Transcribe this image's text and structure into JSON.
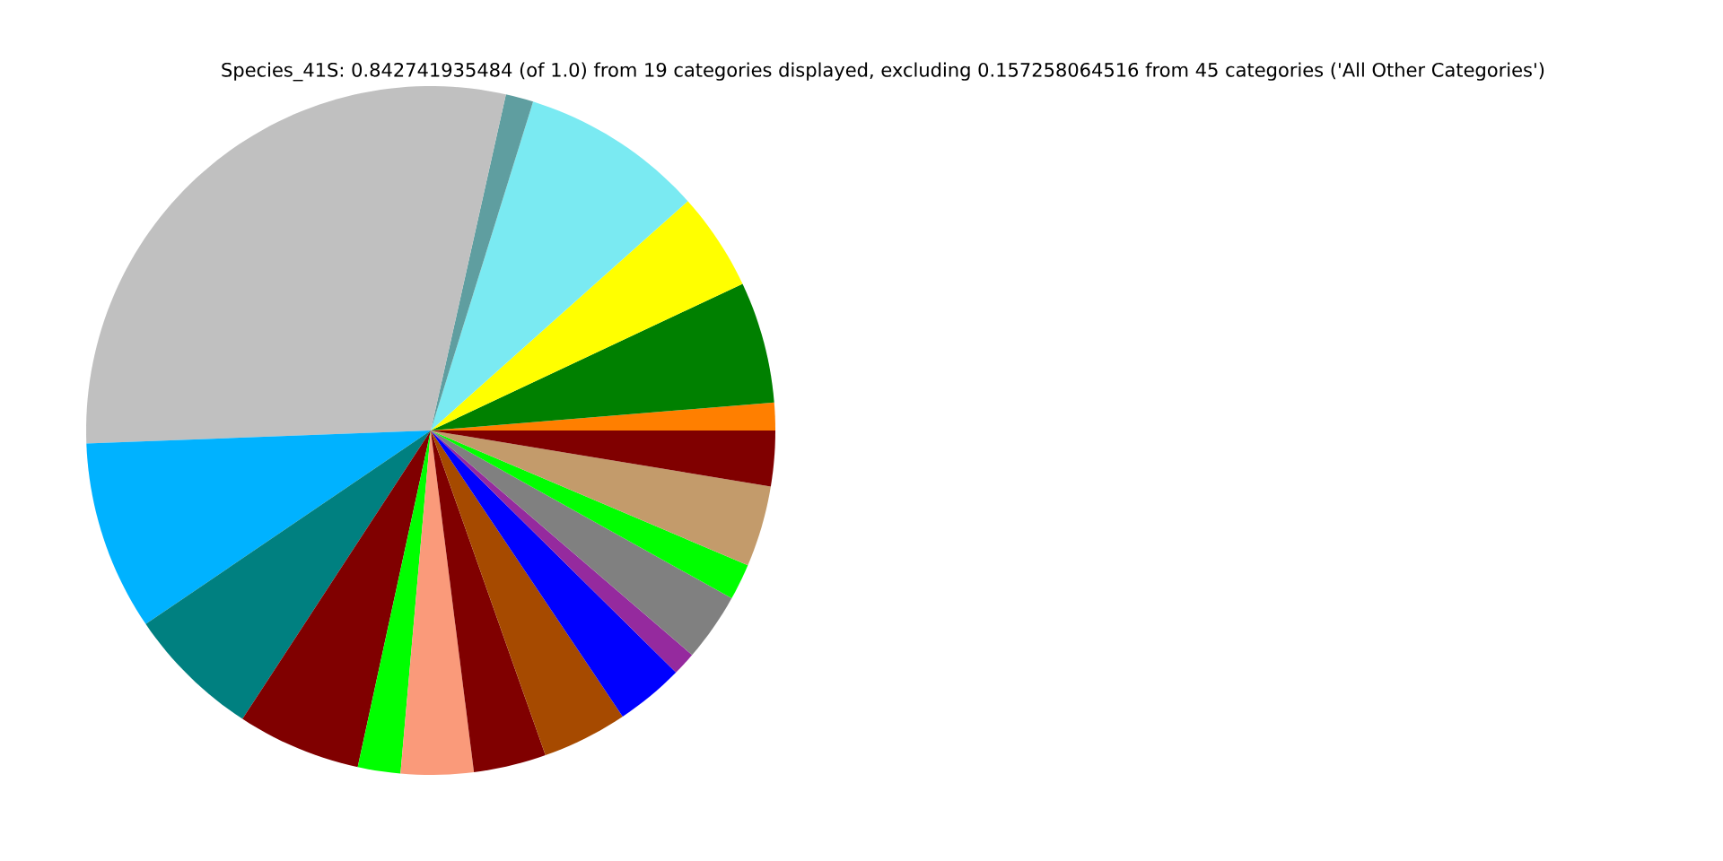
{
  "chart_data": {
    "type": "pie",
    "title": "Species_41S: 0.842741935484 (of 1.0) from 19 categories displayed, excluding 0.157258064516 from 45 categories ('All Other Categories')",
    "categories": [
      null,
      null,
      null,
      null,
      null,
      null,
      null,
      null,
      null,
      null,
      null,
      null,
      null,
      null,
      null,
      null,
      null,
      null,
      null
    ],
    "values": [
      1.3,
      5.7,
      4.6,
      8.6,
      1.3,
      29.1,
      8.9,
      6.3,
      5.8,
      2.0,
      3.4,
      3.4,
      4.0,
      3.2,
      1.1,
      3.2,
      1.7,
      3.8,
      2.6
    ],
    "colors": [
      "#ff7f00",
      "#008000",
      "#ffff00",
      "#7aeaf2",
      "#5f9ea0",
      "#c0c0c0",
      "#00b2ff",
      "#008080",
      "#800000",
      "#00ff00",
      "#fa9a7a",
      "#800000",
      "#a64a00",
      "#0000ff",
      "#952a9e",
      "#808080",
      "#00ff00",
      "#c39b6b",
      "#800000"
    ]
  }
}
